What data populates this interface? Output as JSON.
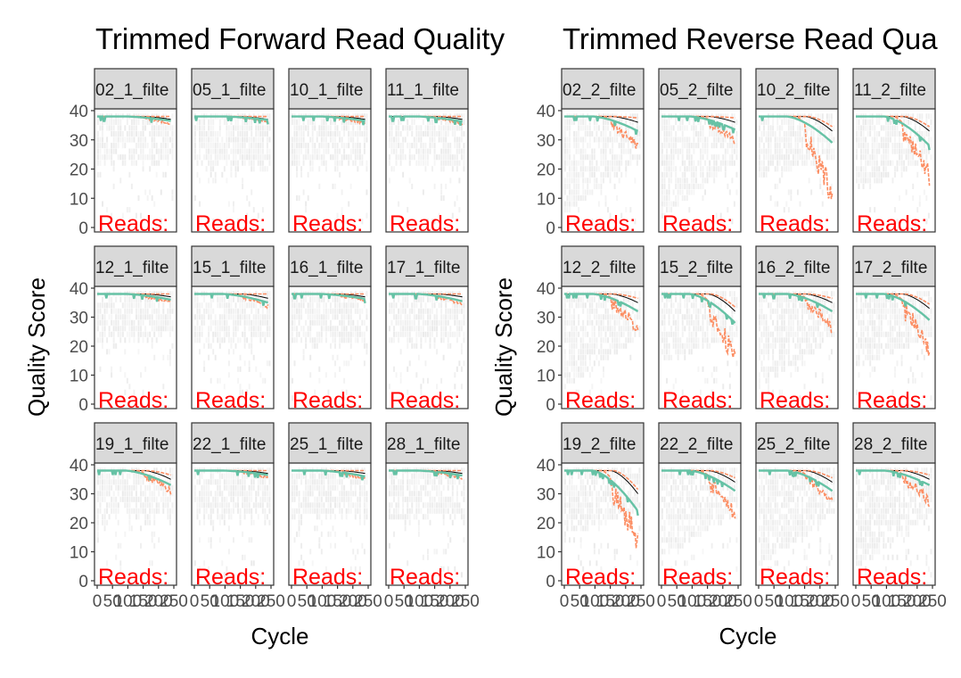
{
  "chart_data": [
    {
      "type": "line",
      "title": "Trimmed Forward Read Quality",
      "xlabel": "Cycle",
      "ylabel": "Quality Score",
      "ylim": [
        0,
        40
      ],
      "yticks": [
        0,
        10,
        20,
        30,
        40
      ],
      "xlim": [
        0,
        250
      ],
      "xticks": [
        0,
        50,
        100,
        150,
        200,
        250
      ],
      "grid": false,
      "panel_read_label": "Reads:",
      "panels": [
        {
          "strip": "02_1_filte",
          "mean_end": 36.5,
          "quart_end": 36.0,
          "median_dip": 37.0
        },
        {
          "strip": "05_1_filte",
          "mean_end": 36.8,
          "quart_end": 36.5,
          "median_dip": 37.0
        },
        {
          "strip": "10_1_filte",
          "mean_end": 36.5,
          "quart_end": 36.0,
          "median_dip": 37.0
        },
        {
          "strip": "11_1_filte",
          "mean_end": 36.3,
          "quart_end": 35.8,
          "median_dip": 37.0
        },
        {
          "strip": "12_1_filte",
          "mean_end": 36.0,
          "quart_end": 35.5,
          "median_dip": 37.0
        },
        {
          "strip": "15_1_filte",
          "mean_end": 35.0,
          "quart_end": 34.5,
          "median_dip": 36.5
        },
        {
          "strip": "16_1_filte",
          "mean_end": 36.3,
          "quart_end": 36.0,
          "median_dip": 37.0
        },
        {
          "strip": "17_1_filte",
          "mean_end": 35.5,
          "quart_end": 35.0,
          "median_dip": 37.0
        },
        {
          "strip": "19_1_filte",
          "mean_end": 33.0,
          "quart_end": 32.0,
          "median_dip": 35.0
        },
        {
          "strip": "22_1_filte",
          "mean_end": 36.5,
          "quart_end": 36.0,
          "median_dip": 37.0
        },
        {
          "strip": "25_1_filte",
          "mean_end": 36.0,
          "quart_end": 35.5,
          "median_dip": 37.0
        },
        {
          "strip": "28_1_filte",
          "mean_end": 36.3,
          "quart_end": 35.8,
          "median_dip": 37.0
        }
      ]
    },
    {
      "type": "line",
      "title": "Trimmed Reverse Read Qua",
      "xlabel": "Cycle",
      "ylabel": "Quality Score",
      "ylim": [
        0,
        40
      ],
      "yticks": [
        0,
        10,
        20,
        30,
        40
      ],
      "xlim": [
        0,
        250
      ],
      "xticks": [
        0,
        50,
        100,
        150,
        200,
        250
      ],
      "grid": false,
      "panel_read_label": "Reads:",
      "panels": [
        {
          "strip": "02_2_filte",
          "mean_end": 33.0,
          "quart_end": 29.0,
          "median_dip": 36.0
        },
        {
          "strip": "05_2_filte",
          "mean_end": 33.5,
          "quart_end": 31.0,
          "median_dip": 36.0
        },
        {
          "strip": "10_2_filte",
          "mean_end": 29.0,
          "quart_end": 15.0,
          "median_dip": 33.0
        },
        {
          "strip": "11_2_filte",
          "mean_end": 28.0,
          "quart_end": 21.0,
          "median_dip": 33.0
        },
        {
          "strip": "12_2_filte",
          "mean_end": 32.0,
          "quart_end": 28.0,
          "median_dip": 35.0
        },
        {
          "strip": "15_2_filte",
          "mean_end": 28.0,
          "quart_end": 19.0,
          "median_dip": 32.0
        },
        {
          "strip": "16_2_filte",
          "mean_end": 32.0,
          "quart_end": 28.0,
          "median_dip": 35.0
        },
        {
          "strip": "17_2_filte",
          "mean_end": 29.0,
          "quart_end": 21.0,
          "median_dip": 33.0
        },
        {
          "strip": "19_2_filte",
          "mean_end": 24.0,
          "quart_end": 17.0,
          "median_dip": 30.0
        },
        {
          "strip": "22_2_filte",
          "mean_end": 31.0,
          "quart_end": 25.0,
          "median_dip": 34.0
        },
        {
          "strip": "25_2_filte",
          "mean_end": 31.0,
          "quart_end": 29.0,
          "median_dip": 34.0
        },
        {
          "strip": "28_2_filte",
          "mean_end": 33.0,
          "quart_end": 29.0,
          "median_dip": 35.0
        }
      ]
    }
  ],
  "colors": {
    "mean_line": "#66c2a5",
    "quartile_lines": "#fc8d62",
    "median_line": "#000000",
    "reads_text": "#ff0000",
    "heatmap_tile": "#e6e6e6",
    "strip_fill": "#d9d9d9",
    "panel_border": "#333333",
    "tick_label": "#4d4d4d"
  }
}
